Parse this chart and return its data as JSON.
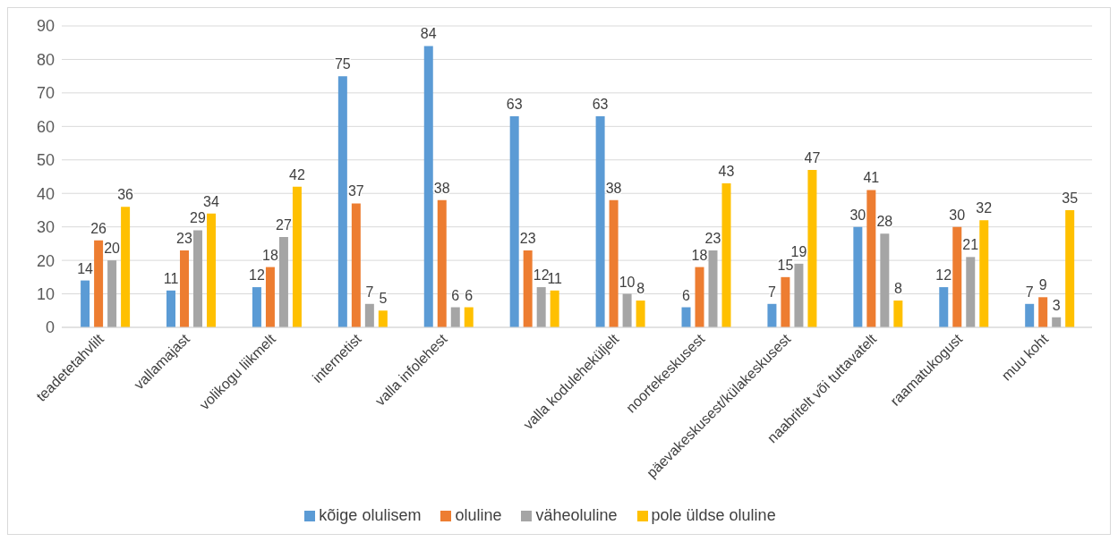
{
  "chart_data": {
    "type": "bar",
    "categories": [
      "teadetetahvlilt",
      "vallamajast",
      "volikogu liikmelt",
      "internetist",
      "valla infolehest",
      null,
      "valla koduleheküljelt",
      "noortekeskusest",
      "päevakeskusest/külakeskusest",
      "naabritelt või tuttavatelt",
      "raamatukogust",
      "muu koht"
    ],
    "series": [
      {
        "name": "kõige olulisem",
        "color": "#5b9bd5",
        "values": [
          14,
          11,
          12,
          75,
          84,
          63,
          63,
          6,
          7,
          30,
          12,
          7
        ]
      },
      {
        "name": "oluline",
        "color": "#ed7d31",
        "values": [
          26,
          23,
          18,
          37,
          38,
          23,
          38,
          18,
          15,
          41,
          30,
          9
        ]
      },
      {
        "name": "väheoluline",
        "color": "#a5a5a5",
        "values": [
          20,
          29,
          27,
          7,
          6,
          12,
          10,
          23,
          19,
          28,
          21,
          3
        ]
      },
      {
        "name": "pole üldse oluline",
        "color": "#ffc000",
        "values": [
          36,
          34,
          42,
          5,
          6,
          11,
          8,
          43,
          47,
          8,
          32,
          35
        ]
      }
    ],
    "ylim": [
      0,
      90
    ],
    "yticks": [
      0,
      10,
      20,
      30,
      40,
      50,
      60,
      70,
      80,
      90
    ],
    "grid": "y",
    "legend": "bottom",
    "data_labels": true
  }
}
